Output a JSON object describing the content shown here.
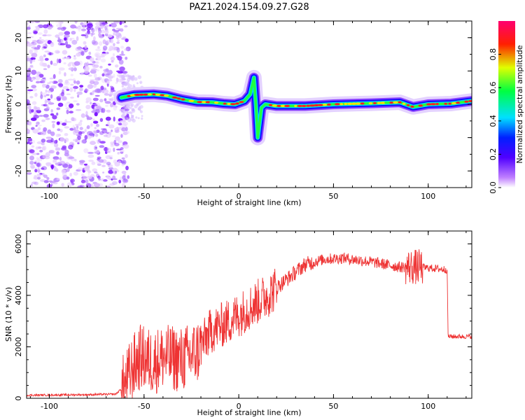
{
  "title": "PAZ1.2024.154.09.27.G28",
  "chart_data": [
    {
      "type": "heatmap",
      "xlabel": "Height of straight line (km)",
      "ylabel": "Frequency (Hz)",
      "xlim": [
        -112,
        123
      ],
      "ylim": [
        -25,
        25
      ],
      "x_ticks": [
        -100,
        -50,
        0,
        50,
        100
      ],
      "y_ticks": [
        -20,
        -10,
        0,
        10,
        20
      ],
      "colorbar": {
        "label": "Normalized spectral amplitude",
        "range": [
          0,
          1
        ],
        "ticks": [
          0.0,
          0.2,
          0.4,
          0.6,
          0.8
        ],
        "colormap": [
          "#ffffff",
          "#a000ff",
          "#0000ff",
          "#00ffff",
          "#00ff00",
          "#ffff00",
          "#ff0000",
          "#ff0080"
        ]
      },
      "main_trace": [
        {
          "x": -62,
          "y": 2.0
        },
        {
          "x": -55,
          "y": 2.8
        },
        {
          "x": -45,
          "y": 3.0
        },
        {
          "x": -38,
          "y": 2.6
        },
        {
          "x": -30,
          "y": 1.5
        },
        {
          "x": -22,
          "y": 0.7
        },
        {
          "x": -14,
          "y": 0.6
        },
        {
          "x": -8,
          "y": 0.2
        },
        {
          "x": -2,
          "y": 0.0
        },
        {
          "x": 3,
          "y": 1.0
        },
        {
          "x": 6,
          "y": 3.0
        },
        {
          "x": 8,
          "y": 8.0
        },
        {
          "x": 9,
          "y": 0.0
        },
        {
          "x": 10,
          "y": -10.0
        },
        {
          "x": 12,
          "y": -1.0
        },
        {
          "x": 14,
          "y": 0.0
        },
        {
          "x": 20,
          "y": -0.5
        },
        {
          "x": 35,
          "y": -0.5
        },
        {
          "x": 50,
          "y": 0.0
        },
        {
          "x": 70,
          "y": 0.3
        },
        {
          "x": 85,
          "y": 0.6
        },
        {
          "x": 92,
          "y": -0.8
        },
        {
          "x": 100,
          "y": 0.0
        },
        {
          "x": 112,
          "y": 0.2
        },
        {
          "x": 123,
          "y": 1.0
        }
      ],
      "noise_region_x": [
        -112,
        -62
      ]
    },
    {
      "type": "line",
      "xlabel": "Height of straight line (km)",
      "ylabel": "SNR (10 * v/v)",
      "xlim": [
        -112,
        123
      ],
      "ylim": [
        0,
        6500
      ],
      "x_ticks": [
        -100,
        -50,
        0,
        50,
        100
      ],
      "y_ticks": [
        0,
        2000,
        4000,
        6000
      ],
      "color": "#ee3333",
      "envelope": [
        {
          "x": -112,
          "y": 120
        },
        {
          "x": -80,
          "y": 140
        },
        {
          "x": -65,
          "y": 160
        },
        {
          "x": -60,
          "y": 500
        },
        {
          "x": -56,
          "y": 1200
        },
        {
          "x": -52,
          "y": 1600
        },
        {
          "x": -45,
          "y": 1400
        },
        {
          "x": -40,
          "y": 1600
        },
        {
          "x": -30,
          "y": 1500
        },
        {
          "x": -22,
          "y": 1800
        },
        {
          "x": -15,
          "y": 2600
        },
        {
          "x": -5,
          "y": 3000
        },
        {
          "x": 5,
          "y": 3500
        },
        {
          "x": 15,
          "y": 4000
        },
        {
          "x": 25,
          "y": 4600
        },
        {
          "x": 35,
          "y": 5200
        },
        {
          "x": 45,
          "y": 5400
        },
        {
          "x": 55,
          "y": 5450
        },
        {
          "x": 70,
          "y": 5300
        },
        {
          "x": 85,
          "y": 5100
        },
        {
          "x": 95,
          "y": 5100
        },
        {
          "x": 110,
          "y": 5000
        },
        {
          "x": 110.5,
          "y": 2400
        },
        {
          "x": 123,
          "y": 2400
        }
      ]
    }
  ]
}
